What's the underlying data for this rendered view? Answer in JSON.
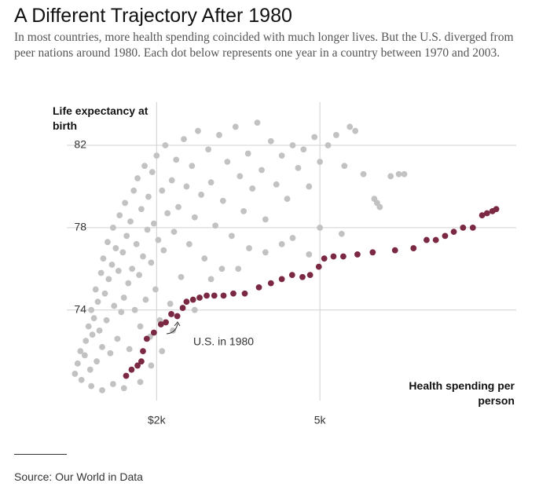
{
  "chart_data": {
    "type": "scatter",
    "title": "A Different Trajectory After 1980",
    "subtitle": "In most countries, more health spending coincided with much longer lives. But the U.S. diverged from peer nations around 1980. Each dot below represents one year in a country between 1970 and 2003.",
    "y_label": "Life expectancy at birth",
    "x_label": "Health spending per person",
    "annotation": "U.S. in 1980",
    "source": "Source: Our World in Data",
    "xlim": [
      350,
      8650
    ],
    "ylim": [
      69.6,
      84.1
    ],
    "xticks": [
      {
        "value": 2000,
        "label": "$2k"
      },
      {
        "value": 5000,
        "label": "5k"
      }
    ],
    "yticks": [
      74,
      78,
      82
    ],
    "grid": true,
    "series": [
      {
        "color": "#c2c2c2",
        "x": [
          500,
          550,
          600,
          620,
          680,
          700,
          750,
          780,
          800,
          820,
          850,
          880,
          900,
          920,
          950,
          980,
          1000,
          1020,
          1050,
          1080,
          1100,
          1120,
          1150,
          1180,
          1200,
          1220,
          1250,
          1280,
          1300,
          1320,
          1350,
          1380,
          1400,
          1420,
          1450,
          1480,
          1500,
          1520,
          1550,
          1580,
          1600,
          1630,
          1650,
          1680,
          1700,
          1720,
          1750,
          1780,
          1800,
          1830,
          1850,
          1880,
          1900,
          1920,
          1950,
          1980,
          2000,
          2030,
          2060,
          2100,
          2130,
          2160,
          2200,
          2250,
          2280,
          2320,
          2360,
          2400,
          2450,
          2500,
          2550,
          2600,
          2650,
          2700,
          2760,
          2820,
          2880,
          2950,
          3000,
          3080,
          3150,
          3220,
          3300,
          3380,
          3450,
          3530,
          3600,
          3680,
          3760,
          3850,
          3930,
          4000,
          4100,
          4200,
          4300,
          4400,
          4500,
          4600,
          4700,
          4800,
          4900,
          5000,
          5150,
          5300,
          5450,
          5550,
          5650,
          5800,
          6000,
          6050,
          6100,
          6450,
          6550,
          6300,
          4300,
          3700,
          5000,
          4500,
          3500,
          4000,
          3000,
          2700,
          2300,
          2100,
          1900,
          1700,
          1400,
          1200,
          1000,
          800,
          3200,
          5400,
          4800
        ],
        "values": [
          70.9,
          71.4,
          72.0,
          70.6,
          71.8,
          72.5,
          73.2,
          71.1,
          74.0,
          72.8,
          73.6,
          75.0,
          71.5,
          74.4,
          73.0,
          75.8,
          72.2,
          76.5,
          74.8,
          73.5,
          77.3,
          75.5,
          71.9,
          76.2,
          78.0,
          74.2,
          77.0,
          72.6,
          75.9,
          78.6,
          73.9,
          76.8,
          74.6,
          79.2,
          77.6,
          75.3,
          72.1,
          78.3,
          76.0,
          79.8,
          74.0,
          77.2,
          80.4,
          75.7,
          73.2,
          78.9,
          76.6,
          81.0,
          74.5,
          77.9,
          79.5,
          72.7,
          76.3,
          80.7,
          78.2,
          75.0,
          81.5,
          77.4,
          73.5,
          79.8,
          76.9,
          82.0,
          78.7,
          74.3,
          80.3,
          77.8,
          81.3,
          79.0,
          75.6,
          82.3,
          80.0,
          77.2,
          81.0,
          78.5,
          82.7,
          79.6,
          76.5,
          81.8,
          80.2,
          78.1,
          82.5,
          79.3,
          81.2,
          77.6,
          82.9,
          80.5,
          78.8,
          81.6,
          79.9,
          83.1,
          80.8,
          78.4,
          82.2,
          80.1,
          81.5,
          79.4,
          82.0,
          80.9,
          81.8,
          80.0,
          82.4,
          81.2,
          82.0,
          82.5,
          81.0,
          82.9,
          82.7,
          80.6,
          79.4,
          79.2,
          79.0,
          80.6,
          80.6,
          80.5,
          77.2,
          77.0,
          78.0,
          77.5,
          76.0,
          76.8,
          75.5,
          74.0,
          73.0,
          72.0,
          71.3,
          70.5,
          70.2,
          70.4,
          70.1,
          70.3,
          76.0,
          77.7,
          76.7
        ]
      },
      {
        "color": "#7b2943",
        "x": [
          1440,
          1540,
          1650,
          1720,
          1750,
          1820,
          1950,
          2080,
          2170,
          2270,
          2380,
          2480,
          2550,
          2670,
          2790,
          2920,
          3060,
          3230,
          3410,
          3620,
          3880,
          4100,
          4300,
          4490,
          4680,
          4820,
          4980,
          5080,
          5250,
          5430,
          5690,
          5970,
          6380,
          6720,
          6960,
          7130,
          7300,
          7460,
          7630,
          7810,
          7980,
          8070,
          8170,
          8240
        ],
        "values": [
          70.8,
          71.1,
          71.3,
          71.5,
          72.0,
          72.6,
          72.9,
          73.3,
          73.4,
          73.8,
          73.7,
          74.1,
          74.4,
          74.5,
          74.6,
          74.7,
          74.7,
          74.7,
          74.8,
          74.8,
          75.1,
          75.3,
          75.5,
          75.7,
          75.6,
          75.7,
          76.1,
          76.5,
          76.6,
          76.6,
          76.7,
          76.8,
          76.9,
          77.0,
          77.4,
          77.4,
          77.6,
          77.8,
          78.0,
          78.0,
          78.6,
          78.7,
          78.8,
          78.9
        ]
      }
    ]
  }
}
